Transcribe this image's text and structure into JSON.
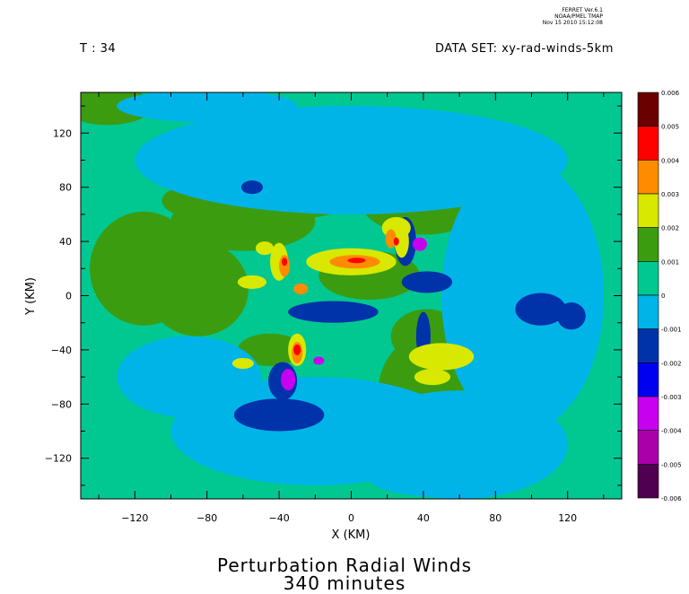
{
  "header": {
    "ferret_line1": "FERRET  Ver.6.1",
    "ferret_line2": "NOAA/PMEL TMAP",
    "ferret_line3": "Nov 15 2010 15:12:08",
    "time_label": "T : 34",
    "dataset_label": "DATA SET: xy-rad-winds-5km"
  },
  "chart_data": {
    "type": "heatmap",
    "title": "Perturbation Radial Winds",
    "subtitle": "340 minutes",
    "xlabel": "X (KM)",
    "ylabel": "Y (KM)",
    "xlim": [
      -150,
      150
    ],
    "ylim": [
      -150,
      150
    ],
    "x_ticks": [
      -120,
      -80,
      -40,
      0,
      40,
      80,
      120
    ],
    "y_ticks": [
      -120,
      -80,
      -40,
      0,
      40,
      80,
      120
    ],
    "x_tick_labels": [
      "−120",
      "−80",
      "−40",
      "0",
      "40",
      "80",
      "120"
    ],
    "y_tick_labels": [
      "−120",
      "−80",
      "−40",
      "0",
      "40",
      "80",
      "120"
    ],
    "colorbar": {
      "levels": [
        0.006,
        0.005,
        0.004,
        0.003,
        0.002,
        0.001,
        0,
        -0.001,
        -0.002,
        -0.003,
        -0.004,
        -0.005,
        -0.006
      ],
      "labels": [
        "0.006",
        "0.005",
        "0.004",
        "0.003",
        "0.002",
        "0.001",
        "0",
        "-0.001",
        "-0.002",
        "-0.003",
        "-0.004",
        "-0.005",
        "-0.006"
      ],
      "colors": [
        "#6b0000",
        "#ff0000",
        "#ff8c00",
        "#d8e800",
        "#3c9c10",
        "#00c890",
        "#00b4e8",
        "#0032aa",
        "#0000f0",
        "#c800f0",
        "#aa00aa",
        "#500050"
      ]
    },
    "field": {
      "background_value": 0,
      "features": [
        {
          "x": -115,
          "y": 20,
          "rx": 30,
          "ry": 42,
          "value": 0.0015
        },
        {
          "x": -85,
          "y": 5,
          "rx": 28,
          "ry": 35,
          "value": 0.0015
        },
        {
          "x": -60,
          "y": 55,
          "rx": 40,
          "ry": 22,
          "value": 0.0015
        },
        {
          "x": -75,
          "y": 70,
          "rx": 30,
          "ry": 15,
          "value": 0.0015
        },
        {
          "x": -30,
          "y": 72,
          "rx": 30,
          "ry": 15,
          "value": 0.0015
        },
        {
          "x": -135,
          "y": 140,
          "rx": 25,
          "ry": 14,
          "value": 0.0015
        },
        {
          "x": -95,
          "y": 140,
          "rx": 20,
          "ry": 10,
          "value": 0.0015
        },
        {
          "x": 10,
          "y": 15,
          "rx": 28,
          "ry": 18,
          "value": 0.0015
        },
        {
          "x": 40,
          "y": 70,
          "rx": 35,
          "ry": 25,
          "value": 0.0015
        },
        {
          "x": 50,
          "y": -70,
          "rx": 35,
          "ry": 45,
          "value": 0.0015
        },
        {
          "x": 42,
          "y": -30,
          "rx": 20,
          "ry": 20,
          "value": 0.0015
        },
        {
          "x": -45,
          "y": -40,
          "rx": 18,
          "ry": 12,
          "value": 0.0015
        },
        {
          "x": 80,
          "y": 80,
          "rx": 15,
          "ry": 12,
          "value": 0.0015
        },
        {
          "x": 0,
          "y": 100,
          "rx": 120,
          "ry": 40,
          "value": -0.0005
        },
        {
          "x": 95,
          "y": 0,
          "rx": 45,
          "ry": 100,
          "value": -0.0005
        },
        {
          "x": -20,
          "y": -100,
          "rx": 80,
          "ry": 40,
          "value": -0.0005
        },
        {
          "x": 60,
          "y": -110,
          "rx": 60,
          "ry": 40,
          "value": -0.0005
        },
        {
          "x": -90,
          "y": -60,
          "rx": 40,
          "ry": 30,
          "value": -0.0005
        },
        {
          "x": 55,
          "y": -135,
          "rx": 45,
          "ry": 14,
          "value": -0.0005
        },
        {
          "x": -80,
          "y": 140,
          "rx": 50,
          "ry": 12,
          "value": -0.0005
        },
        {
          "x": -40,
          "y": -88,
          "rx": 25,
          "ry": 12,
          "value": -0.0015
        },
        {
          "x": -10,
          "y": -12,
          "rx": 25,
          "ry": 8,
          "value": -0.0015
        },
        {
          "x": -38,
          "y": -63,
          "rx": 8,
          "ry": 14,
          "value": -0.0015
        },
        {
          "x": 30,
          "y": 40,
          "rx": 6,
          "ry": 18,
          "value": -0.0015
        },
        {
          "x": 42,
          "y": 10,
          "rx": 14,
          "ry": 8,
          "value": -0.0015
        },
        {
          "x": 105,
          "y": -10,
          "rx": 14,
          "ry": 12,
          "value": -0.0015
        },
        {
          "x": 122,
          "y": -15,
          "rx": 8,
          "ry": 10,
          "value": -0.0015
        },
        {
          "x": -55,
          "y": 80,
          "rx": 6,
          "ry": 5,
          "value": -0.0015
        },
        {
          "x": 40,
          "y": -30,
          "rx": 4,
          "ry": 18,
          "value": -0.0015
        },
        {
          "x": -35,
          "y": -62,
          "rx": 4,
          "ry": 8,
          "value": -0.0035
        },
        {
          "x": 38,
          "y": 38,
          "rx": 4,
          "ry": 5,
          "value": -0.0035
        },
        {
          "x": -18,
          "y": -48,
          "rx": 3,
          "ry": 3,
          "value": -0.0035
        },
        {
          "x": -40,
          "y": 25,
          "rx": 5,
          "ry": 14,
          "value": 0.0025
        },
        {
          "x": -48,
          "y": 35,
          "rx": 5,
          "ry": 5,
          "value": 0.0025
        },
        {
          "x": -55,
          "y": 10,
          "rx": 8,
          "ry": 5,
          "value": 0.0025
        },
        {
          "x": 0,
          "y": 25,
          "rx": 25,
          "ry": 10,
          "value": 0.0025
        },
        {
          "x": 25,
          "y": 50,
          "rx": 8,
          "ry": 8,
          "value": 0.0025
        },
        {
          "x": 50,
          "y": -45,
          "rx": 18,
          "ry": 10,
          "value": 0.0025
        },
        {
          "x": 45,
          "y": -60,
          "rx": 10,
          "ry": 6,
          "value": 0.0025
        },
        {
          "x": -30,
          "y": -40,
          "rx": 5,
          "ry": 12,
          "value": 0.0025
        },
        {
          "x": 28,
          "y": 40,
          "rx": 4,
          "ry": 12,
          "value": 0.0025
        },
        {
          "x": -60,
          "y": -50,
          "rx": 6,
          "ry": 4,
          "value": 0.0025
        },
        {
          "x": -37,
          "y": 22,
          "rx": 3,
          "ry": 8,
          "value": 0.0035
        },
        {
          "x": -28,
          "y": 5,
          "rx": 4,
          "ry": 4,
          "value": 0.0035
        },
        {
          "x": 2,
          "y": 25,
          "rx": 14,
          "ry": 5,
          "value": 0.0035
        },
        {
          "x": 22,
          "y": 42,
          "rx": 3,
          "ry": 7,
          "value": 0.0035
        },
        {
          "x": -30,
          "y": -42,
          "rx": 3,
          "ry": 8,
          "value": 0.0035
        },
        {
          "x": 3,
          "y": 26,
          "rx": 5,
          "ry": 2,
          "value": 0.0045
        },
        {
          "x": -37,
          "y": 25,
          "rx": 1.5,
          "ry": 3,
          "value": 0.0045
        },
        {
          "x": -30,
          "y": -40,
          "rx": 2,
          "ry": 4,
          "value": 0.0045
        },
        {
          "x": 25,
          "y": 40,
          "rx": 1.5,
          "ry": 3,
          "value": 0.0045
        }
      ]
    }
  }
}
